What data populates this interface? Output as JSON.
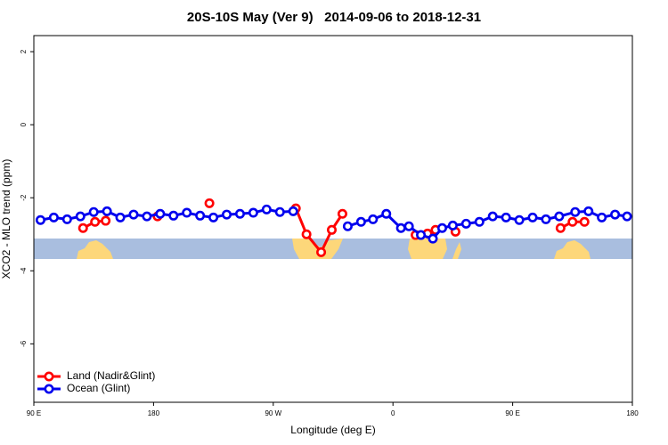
{
  "chart_data": {
    "type": "line",
    "title": "20S-10S May (Ver 9)   2014-09-06 to 2018-12-31",
    "x_label": "Longitude (deg E)",
    "y_label": "XCO2 - MLO trend (ppm)",
    "xlim": [
      90,
      540
    ],
    "ylim": [
      -7.6,
      2.44
    ],
    "xticks": [
      {
        "value": 90,
        "label": "90 E"
      },
      {
        "value": 180,
        "label": "180"
      },
      {
        "value": 270,
        "label": "90 W"
      },
      {
        "value": 360,
        "label": "0"
      },
      {
        "value": 450,
        "label": "90 E"
      },
      {
        "value": 540,
        "label": "180"
      }
    ],
    "yticks": [
      2,
      0,
      -2,
      -4,
      -6
    ],
    "legend": "bottom-left",
    "series": [
      {
        "name": "Land (Nadir&Glint)",
        "color": "#ff0000",
        "x": [
          127,
          136,
          144,
          null,
          183,
          null,
          222,
          null,
          287,
          295,
          306,
          314,
          322,
          null,
          377,
          386,
          392,
          null,
          407,
          null,
          486,
          495,
          504
        ],
        "values": [
          -2.83,
          -2.66,
          -2.63,
          null,
          -2.51,
          null,
          -2.15,
          null,
          -2.29,
          -3.0,
          -3.49,
          -2.88,
          -2.44,
          null,
          -3.02,
          -2.98,
          -2.88,
          null,
          -2.93,
          null,
          -2.83,
          -2.66,
          -2.66
        ]
      },
      {
        "name": "Ocean (Glint)",
        "color": "#0000ee",
        "x": [
          95,
          105,
          115,
          125,
          135,
          145,
          155,
          165,
          175,
          185,
          195,
          205,
          215,
          225,
          235,
          245,
          255,
          265,
          275,
          285,
          null,
          326,
          336,
          345,
          355,
          366,
          372,
          381,
          390,
          397,
          405,
          415,
          425,
          435,
          445,
          455,
          465,
          475,
          485,
          497,
          507,
          517,
          527,
          536
        ],
        "values": [
          -2.61,
          -2.54,
          -2.59,
          -2.51,
          -2.39,
          -2.37,
          -2.54,
          -2.46,
          -2.51,
          -2.44,
          -2.49,
          -2.41,
          -2.49,
          -2.54,
          -2.46,
          -2.44,
          -2.41,
          -2.32,
          -2.39,
          -2.37,
          null,
          -2.78,
          -2.66,
          -2.59,
          -2.44,
          -2.83,
          -2.78,
          -3.02,
          -3.12,
          -2.83,
          -2.76,
          -2.71,
          -2.66,
          -2.51,
          -2.54,
          -2.61,
          -2.54,
          -2.59,
          -2.51,
          -2.39,
          -2.37,
          -2.54,
          -2.46,
          -2.51
        ]
      }
    ]
  }
}
